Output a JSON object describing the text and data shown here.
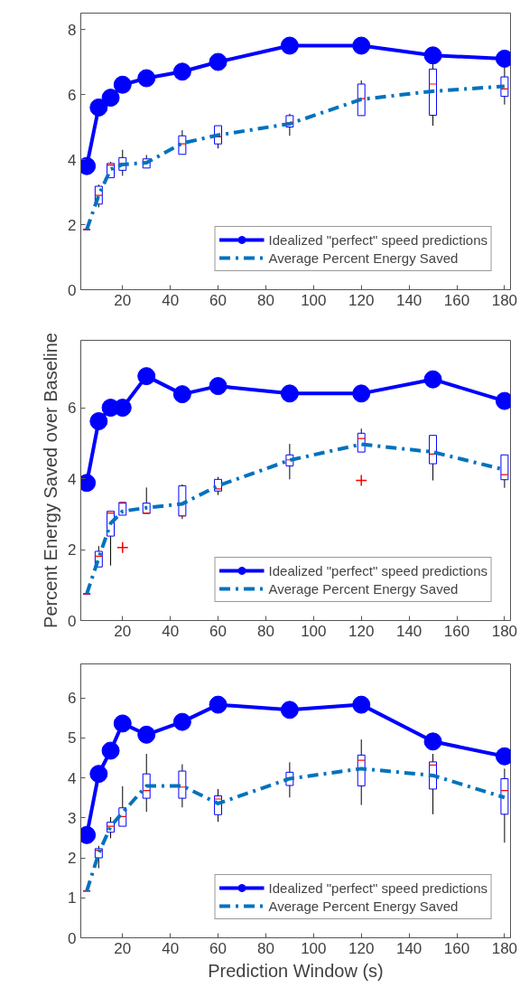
{
  "chart_data": [
    {
      "type": "line",
      "x": [
        5,
        10,
        15,
        20,
        30,
        45,
        60,
        90,
        120,
        150,
        180
      ],
      "xlim": [
        2.5,
        182.5
      ],
      "xticks": [
        20,
        40,
        60,
        80,
        100,
        120,
        140,
        160,
        180
      ],
      "ylim": [
        0,
        8.5
      ],
      "yticks": [
        0,
        2,
        4,
        6,
        8
      ],
      "grid": false,
      "legend": "bottom right",
      "series": [
        {
          "type": "box",
          "color": "#0000ff",
          "boxes": [
            {
              "low": 1.85,
              "q1": 1.85,
              "median": 1.85,
              "q3": 1.85,
              "high": 1.85
            },
            {
              "low": 2.53,
              "q1": 2.63,
              "median": 2.9,
              "q3": 3.18,
              "high": 3.23
            },
            {
              "low": 3.44,
              "q1": 3.44,
              "median": 3.83,
              "q3": 3.88,
              "high": 3.93
            },
            {
              "low": 3.5,
              "q1": 3.67,
              "median": 3.88,
              "q3": 4.06,
              "high": 4.3
            },
            {
              "low": 3.74,
              "q1": 3.74,
              "median": 3.93,
              "q3": 4.02,
              "high": 4.14
            },
            {
              "low": 4.16,
              "q1": 4.16,
              "median": 4.48,
              "q3": 4.73,
              "high": 4.9
            },
            {
              "low": 4.34,
              "q1": 4.48,
              "median": 4.7,
              "q3": 5.04,
              "high": 5.04
            },
            {
              "low": 4.73,
              "q1": 5.0,
              "median": 5.13,
              "q3": 5.35,
              "high": 5.41
            },
            {
              "low": 5.35,
              "q1": 5.35,
              "median": 5.87,
              "q3": 6.32,
              "high": 6.43
            },
            {
              "low": 5.04,
              "q1": 5.36,
              "median": 6.32,
              "q3": 6.78,
              "high": 7.03
            },
            {
              "low": 5.69,
              "q1": 5.94,
              "median": 6.17,
              "q3": 6.54,
              "high": 7.03
            }
          ]
        },
        {
          "type": "line",
          "name": "Idealized \"perfect\" speed predictions",
          "color": "#0000ff",
          "marker": "circle",
          "line_style": "solid",
          "values": [
            3.8,
            5.6,
            5.9,
            6.3,
            6.5,
            6.7,
            7.0,
            7.5,
            7.5,
            7.2,
            7.1
          ]
        },
        {
          "type": "line",
          "name": "Average Percent Energy Saved",
          "color": "#0072bd",
          "marker": "none",
          "line_style": "dashdot",
          "values": [
            1.85,
            2.9,
            3.7,
            3.85,
            3.9,
            4.5,
            4.75,
            5.1,
            5.85,
            6.1,
            6.25
          ]
        }
      ]
    },
    {
      "type": "line",
      "ylabel": "Percent Energy Saved over Baseline",
      "x": [
        5,
        10,
        15,
        20,
        30,
        45,
        60,
        90,
        120,
        150,
        180
      ],
      "xlim": [
        2.5,
        182.5
      ],
      "xticks": [
        20,
        40,
        60,
        80,
        100,
        120,
        140,
        160,
        180
      ],
      "ylim": [
        0,
        7.9
      ],
      "yticks": [
        0,
        2,
        4,
        6
      ],
      "grid": false,
      "legend": "bottom right",
      "series": [
        {
          "type": "box",
          "color": "#0000ff",
          "boxes": [
            {
              "low": 0.75,
              "q1": 0.75,
              "median": 0.75,
              "q3": 0.75,
              "high": 0.75
            },
            {
              "low": 1.51,
              "q1": 1.51,
              "median": 1.81,
              "q3": 1.95,
              "high": 2.1
            },
            {
              "low": 1.55,
              "q1": 2.38,
              "median": 3.03,
              "q3": 3.08,
              "high": 3.08
            },
            {
              "low": 2.97,
              "q1": 2.97,
              "median": 3.31,
              "q3": 3.33,
              "high": 3.33,
              "outliers": [
                2.06
              ]
            },
            {
              "low": 3.02,
              "q1": 3.02,
              "median": 3.03,
              "q3": 3.31,
              "high": 3.75
            },
            {
              "low": 2.86,
              "q1": 2.95,
              "median": 2.95,
              "q3": 3.8,
              "high": 3.84
            },
            {
              "low": 3.54,
              "q1": 3.65,
              "median": 3.71,
              "q3": 3.98,
              "high": 4.05
            },
            {
              "low": 3.98,
              "q1": 4.36,
              "median": 4.53,
              "q3": 4.67,
              "high": 4.98
            },
            {
              "low": 4.75,
              "q1": 4.75,
              "median": 5.13,
              "q3": 5.28,
              "high": 5.41,
              "outliers": [
                3.95
              ]
            },
            {
              "low": 3.95,
              "q1": 4.42,
              "median": 4.69,
              "q3": 5.22,
              "high": 5.22
            },
            {
              "low": 3.74,
              "q1": 3.97,
              "median": 4.11,
              "q3": 4.67,
              "high": 4.67
            }
          ]
        },
        {
          "type": "line",
          "name": "Idealized \"perfect\" speed predictions",
          "color": "#0000ff",
          "marker": "circle",
          "line_style": "solid",
          "values": [
            3.88,
            5.62,
            6.0,
            6.0,
            6.89,
            6.38,
            6.61,
            6.4,
            6.4,
            6.8,
            6.19
          ]
        },
        {
          "type": "line",
          "name": "Average Percent Energy Saved",
          "color": "#0072bd",
          "marker": "none",
          "line_style": "dashdot",
          "values": [
            0.75,
            1.76,
            2.74,
            3.08,
            3.18,
            3.29,
            3.8,
            4.52,
            4.97,
            4.75,
            4.25
          ]
        }
      ]
    },
    {
      "type": "line",
      "xlabel": "Prediction Window (s)",
      "x": [
        5,
        10,
        15,
        20,
        30,
        45,
        60,
        90,
        120,
        150,
        180
      ],
      "xlim": [
        2.5,
        182.5
      ],
      "xticks": [
        20,
        40,
        60,
        80,
        100,
        120,
        140,
        160,
        180
      ],
      "ylim": [
        0,
        6.85
      ],
      "yticks": [
        0,
        1,
        2,
        3,
        4,
        5,
        6
      ],
      "grid": false,
      "legend": "bottom right",
      "series": [
        {
          "type": "box",
          "color": "#0000ff",
          "boxes": [
            {
              "low": 1.17,
              "q1": 1.17,
              "median": 1.17,
              "q3": 1.17,
              "high": 1.17
            },
            {
              "low": 1.74,
              "q1": 2.0,
              "median": 2.19,
              "q3": 2.23,
              "high": 2.3
            },
            {
              "low": 2.49,
              "q1": 2.64,
              "median": 2.79,
              "q3": 2.89,
              "high": 3.02
            },
            {
              "low": 2.79,
              "q1": 2.79,
              "median": 3.03,
              "q3": 3.25,
              "high": 3.79
            },
            {
              "low": 3.15,
              "q1": 3.49,
              "median": 3.68,
              "q3": 4.1,
              "high": 4.6
            },
            {
              "low": 3.26,
              "q1": 3.49,
              "median": 3.77,
              "q3": 4.17,
              "high": 4.34
            },
            {
              "low": 2.9,
              "q1": 3.08,
              "median": 3.47,
              "q3": 3.55,
              "high": 3.72
            },
            {
              "low": 3.51,
              "q1": 3.81,
              "median": 4.0,
              "q3": 4.14,
              "high": 4.39
            },
            {
              "low": 3.32,
              "q1": 3.8,
              "median": 4.44,
              "q3": 4.57,
              "high": 4.96
            },
            {
              "low": 3.09,
              "q1": 3.72,
              "median": 4.32,
              "q3": 4.4,
              "high": 4.6
            },
            {
              "low": 2.38,
              "q1": 3.09,
              "median": 3.68,
              "q3": 3.98,
              "high": 4.23
            }
          ]
        },
        {
          "type": "line",
          "name": "Idealized \"perfect\" speed predictions",
          "color": "#0000ff",
          "marker": "circle",
          "line_style": "solid",
          "values": [
            2.57,
            4.1,
            4.68,
            5.36,
            5.08,
            5.4,
            5.83,
            5.7,
            5.83,
            4.91,
            4.54
          ]
        },
        {
          "type": "line",
          "name": "Average Percent Energy Saved",
          "color": "#0072bd",
          "marker": "none",
          "line_style": "dashdot",
          "values": [
            1.17,
            2.11,
            2.79,
            3.13,
            3.8,
            3.8,
            3.36,
            3.98,
            4.23,
            4.06,
            3.51
          ]
        }
      ]
    }
  ]
}
